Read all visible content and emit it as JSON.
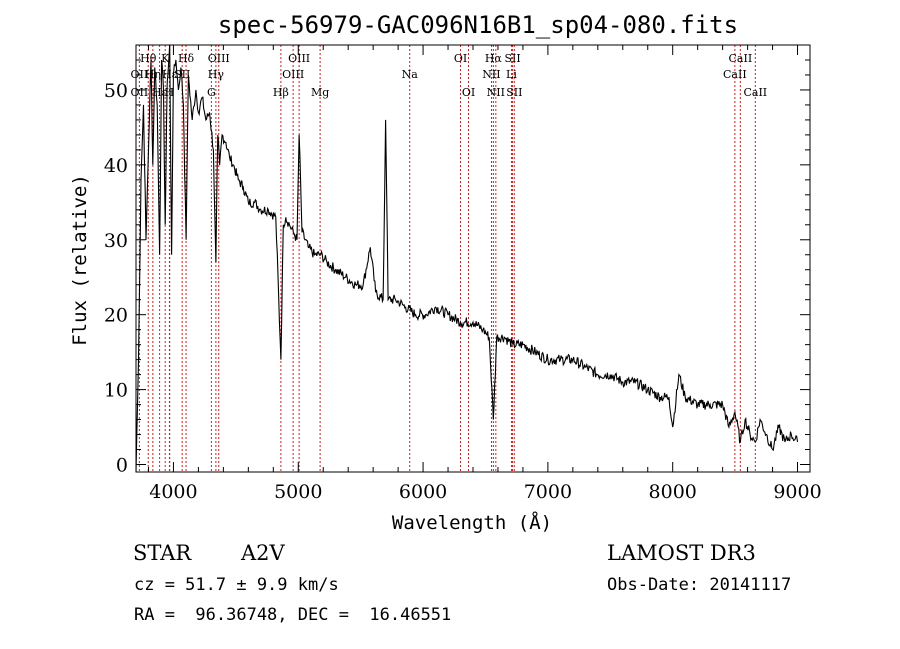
{
  "chart_data": {
    "type": "line",
    "title": "spec-56979-GAC096N16B1_sp04-080.fits",
    "xlabel": "Wavelength (Å)",
    "ylabel": "Flux (relative)",
    "xlim": [
      3700,
      9100
    ],
    "ylim": [
      -1,
      56
    ],
    "xticks": [
      4000,
      5000,
      6000,
      7000,
      8000,
      9000
    ],
    "xtick_labels": [
      "4000",
      "5000",
      "6000",
      "7000",
      "8000",
      "9000"
    ],
    "yticks": [
      0,
      10,
      20,
      30,
      40,
      50
    ],
    "ytick_labels": [
      "0",
      "10",
      "20",
      "30",
      "40",
      "50"
    ],
    "series": [
      {
        "name": "spectrum",
        "x": [
          3700,
          3720,
          3740,
          3760,
          3780,
          3800,
          3820,
          3835,
          3850,
          3870,
          3889,
          3905,
          3920,
          3934,
          3950,
          3970,
          3985,
          4000,
          4020,
          4040,
          4060,
          4080,
          4101,
          4120,
          4150,
          4180,
          4200,
          4230,
          4260,
          4290,
          4320,
          4340,
          4355,
          4370,
          4390,
          4420,
          4450,
          4480,
          4520,
          4560,
          4600,
          4650,
          4700,
          4760,
          4820,
          4861,
          4880,
          4900,
          4930,
          4960,
          4990,
          5007,
          5030,
          5080,
          5130,
          5180,
          5230,
          5300,
          5380,
          5460,
          5520,
          5577,
          5620,
          5680,
          5700,
          5720,
          5780,
          5860,
          5940,
          6020,
          6100,
          6200,
          6300,
          6400,
          6480,
          6530,
          6563,
          6590,
          6650,
          6720,
          6800,
          6900,
          7000,
          7100,
          7200,
          7300,
          7400,
          7500,
          7600,
          7700,
          7800,
          7900,
          7970,
          8000,
          8050,
          8100,
          8200,
          8300,
          8400,
          8450,
          8498,
          8542,
          8580,
          8620,
          8662,
          8700,
          8750,
          8800,
          8850,
          8900,
          8950,
          9000
        ],
        "values": [
          -1,
          14,
          38,
          48,
          30,
          42,
          54,
          40,
          53,
          48,
          28,
          54,
          50,
          32,
          51,
          56,
          28,
          52,
          54,
          50,
          53,
          48,
          30,
          52,
          46,
          50,
          47,
          49,
          46,
          47,
          42,
          27,
          44,
          40,
          44,
          43,
          41,
          40,
          38,
          37,
          35,
          35,
          34,
          34,
          33,
          14,
          32,
          33,
          32,
          31,
          30,
          44,
          31,
          29,
          28,
          28,
          27,
          26,
          25,
          24,
          24,
          29,
          23,
          22,
          46,
          22,
          22,
          21,
          20,
          20,
          21,
          20,
          19,
          19,
          18,
          17,
          6,
          17,
          17,
          16,
          16,
          15,
          14,
          14,
          14,
          13,
          12,
          12,
          11,
          11,
          10,
          9,
          9,
          5,
          12,
          9,
          8,
          8,
          8,
          5,
          7,
          3,
          6,
          4,
          3,
          6,
          4,
          2,
          5,
          3,
          4,
          3
        ]
      }
    ],
    "lines": [
      {
        "label": "Hθ",
        "x": 3798,
        "row": 0
      },
      {
        "label": "OII",
        "x": 3727,
        "row": 1
      },
      {
        "label": "OII",
        "x": 3727,
        "row": 2
      },
      {
        "label": "Hη",
        "x": 3835,
        "row": 1
      },
      {
        "label": "Hε",
        "x": 3889,
        "row": 2
      },
      {
        "label": "K",
        "x": 3934,
        "row": 0
      },
      {
        "label": "Hε",
        "x": 3970,
        "row": 1
      },
      {
        "label": "H",
        "x": 3968,
        "row": 2
      },
      {
        "label": "SII",
        "x": 4070,
        "row": 1
      },
      {
        "label": "Hδ",
        "x": 4101,
        "row": 0
      },
      {
        "label": "OIII",
        "x": 4363,
        "row": 0
      },
      {
        "label": "Hγ",
        "x": 4340,
        "row": 1
      },
      {
        "label": "G",
        "x": 4304,
        "row": 2
      },
      {
        "label": "Hβ",
        "x": 4861,
        "row": 2
      },
      {
        "label": "OIII",
        "x": 5007,
        "row": 0
      },
      {
        "label": "OIII",
        "x": 4959,
        "row": 1
      },
      {
        "label": "Mg",
        "x": 5175,
        "row": 2
      },
      {
        "label": "Na",
        "x": 5893,
        "row": 1
      },
      {
        "label": "OI",
        "x": 6300,
        "row": 0
      },
      {
        "label": "OI",
        "x": 6364,
        "row": 2
      },
      {
        "label": "Hα",
        "x": 6563,
        "row": 0
      },
      {
        "label": "NII",
        "x": 6548,
        "row": 1
      },
      {
        "label": "NII",
        "x": 6583,
        "row": 2
      },
      {
        "label": "SII",
        "x": 6717,
        "row": 0
      },
      {
        "label": "Li",
        "x": 6708,
        "row": 1
      },
      {
        "label": "SII",
        "x": 6731,
        "row": 2
      },
      {
        "label": "CaII",
        "x": 8542,
        "row": 0
      },
      {
        "label": "CaII",
        "x": 8498,
        "row": 1
      },
      {
        "label": "CaII",
        "x": 8662,
        "row": 2
      }
    ]
  },
  "footer": {
    "class_label": "STAR",
    "subclass": "A2V",
    "survey": "LAMOST DR3",
    "cz": "cz = 51.7 ± 9.9 km/s",
    "obs_date": "Obs-Date: 20141117",
    "coords": "RA =  96.36748, DEC =  16.46551"
  },
  "colors": {
    "line_marker": "#cc2020",
    "spectrum": "#000000"
  }
}
